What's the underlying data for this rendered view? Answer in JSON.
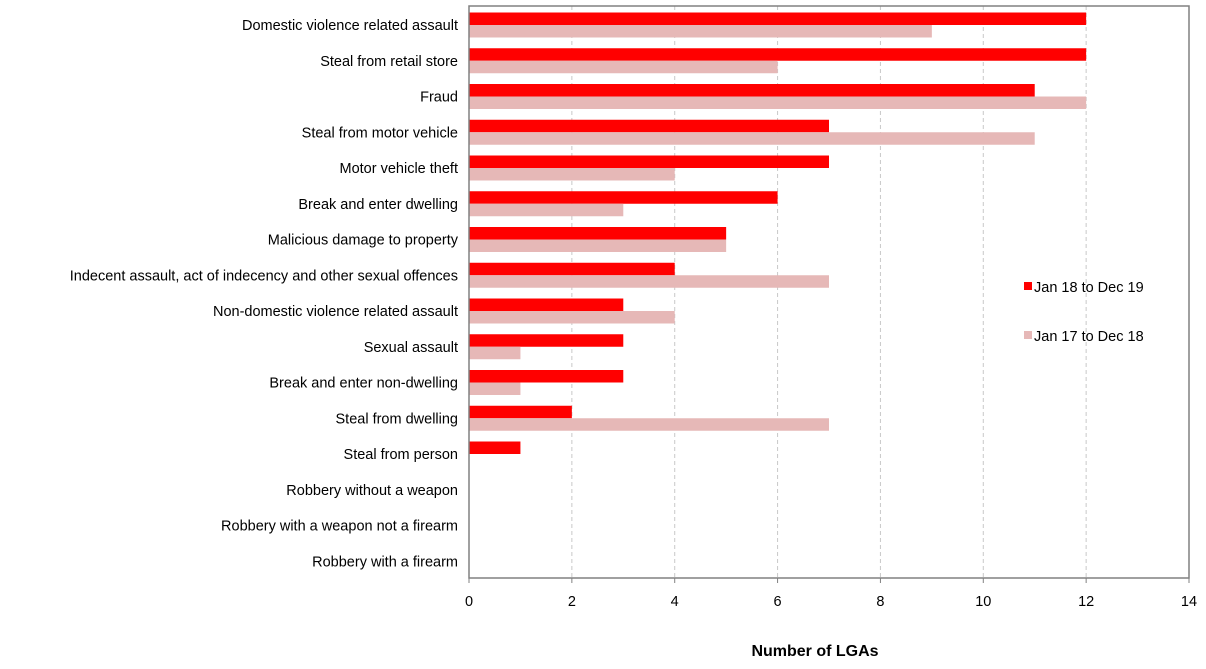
{
  "chart_data": {
    "type": "bar",
    "orientation": "horizontal",
    "xlabel": "Number of LGAs",
    "xlim": [
      0,
      14
    ],
    "xticks": [
      0,
      2,
      4,
      6,
      8,
      10,
      12,
      14
    ],
    "grid": "vertical dashed",
    "legend_position": "right",
    "categories": [
      "Domestic violence related assault",
      "Steal from retail store",
      "Fraud",
      "Steal from motor vehicle",
      "Motor vehicle theft",
      "Break and enter dwelling",
      "Malicious damage to property",
      "Indecent assault, act of indecency and other sexual offences",
      "Non-domestic violence related assault",
      "Sexual assault",
      "Break and enter non-dwelling",
      "Steal from dwelling",
      "Steal from person",
      "Robbery without a weapon",
      "Robbery with a weapon not a firearm",
      "Robbery with a firearm"
    ],
    "series": [
      {
        "name": "Jan 18 to Dec 19",
        "color": "#ff0000",
        "values": [
          12,
          12,
          11,
          7,
          7,
          6,
          5,
          4,
          3,
          3,
          3,
          2,
          1,
          0,
          0,
          0
        ]
      },
      {
        "name": "Jan 17 to Dec 18",
        "color": "#e6b8b7",
        "values": [
          9,
          6,
          12,
          11,
          4,
          3,
          5,
          7,
          4,
          1,
          1,
          7,
          0,
          0,
          0,
          0
        ]
      }
    ]
  }
}
